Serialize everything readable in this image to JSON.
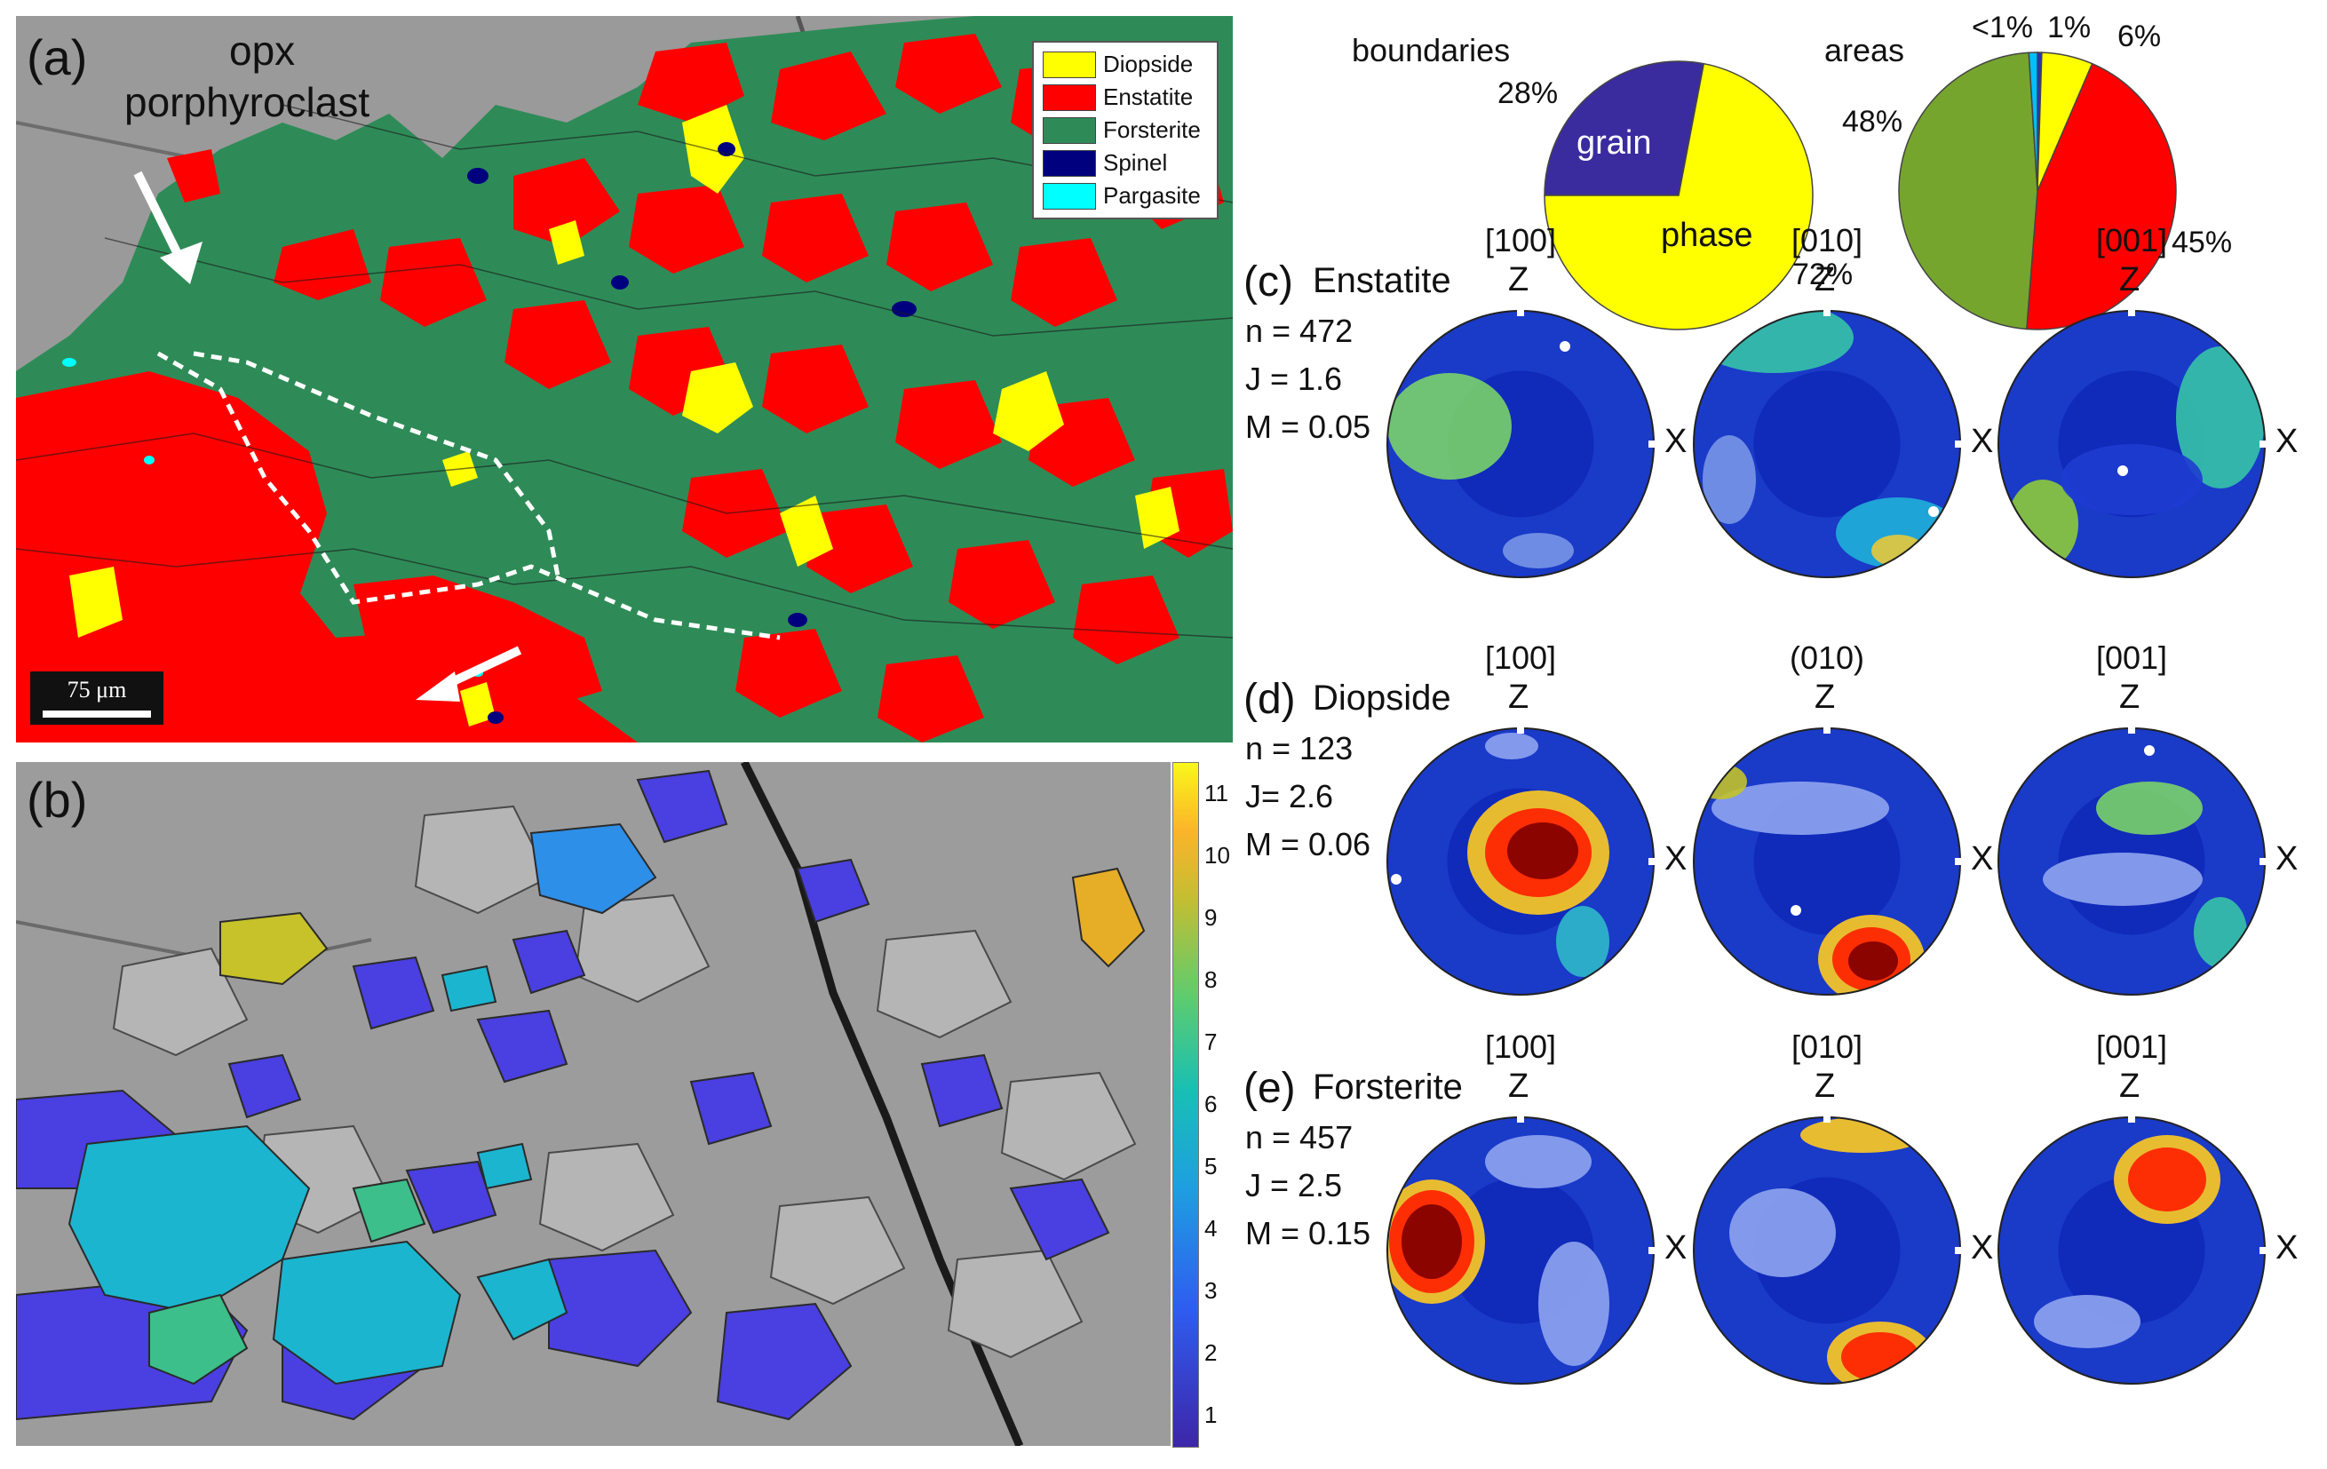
{
  "panel_a": {
    "label": "(a)",
    "annotation_line1": "opx",
    "annotation_line2": "porphyroclast",
    "scalebar": "75 μm",
    "legend": [
      {
        "name": "Diopside",
        "color": "#ffff00"
      },
      {
        "name": "Enstatite",
        "color": "#ff0000"
      },
      {
        "name": "Forsterite",
        "color": "#2e8b57"
      },
      {
        "name": "Spinel",
        "color": "#00007f"
      },
      {
        "name": "Pargasite",
        "color": "#00ffff"
      }
    ]
  },
  "panel_b": {
    "label": "(b)",
    "colorbar_ticks": [
      "11",
      "10",
      "9",
      "8",
      "7",
      "6",
      "5",
      "4",
      "3",
      "2",
      "1"
    ]
  },
  "chart_data": [
    {
      "type": "pie",
      "title": "boundaries",
      "slices": [
        {
          "label": "grain",
          "value": 28,
          "text": "28%",
          "color": "#3a2c9e"
        },
        {
          "label": "phase",
          "value": 72,
          "text": "72%",
          "color": "#ffff00"
        }
      ]
    },
    {
      "type": "pie",
      "title": "areas",
      "slices": [
        {
          "label": "Spinel",
          "value": 0.5,
          "text": "<1%",
          "color": "#2233cc"
        },
        {
          "label": "Diopside",
          "value": 6,
          "text": "6%",
          "color": "#ffff00"
        },
        {
          "label": "Enstatite",
          "value": 45,
          "text": "45%",
          "color": "#ff0000"
        },
        {
          "label": "Forsterite",
          "value": 48,
          "text": "48%",
          "color": "#76a52e"
        },
        {
          "label": "Pargasite",
          "value": 1,
          "text": "1%",
          "color": "#00bfff"
        }
      ]
    }
  ],
  "pole_figures": [
    {
      "label": "(c)",
      "mineral": "Enstatite",
      "n": "n = 472",
      "J": "J = 1.6",
      "M": "M = 0.05",
      "titles": [
        "[100]",
        "[010]",
        "[001]"
      ]
    },
    {
      "label": "(d)",
      "mineral": "Diopside",
      "n": "n = 123",
      "J": "J= 2.6",
      "M": "M = 0.06",
      "titles": [
        "[100]",
        "(010)",
        "[001]"
      ]
    },
    {
      "label": "(e)",
      "mineral": "Forsterite",
      "n": "n = 457",
      "J": "J = 2.5",
      "M": "M = 0.15",
      "titles": [
        "[100]",
        "[010]",
        "[001]"
      ]
    }
  ],
  "axis_labels": {
    "z": "Z",
    "x": "X"
  }
}
